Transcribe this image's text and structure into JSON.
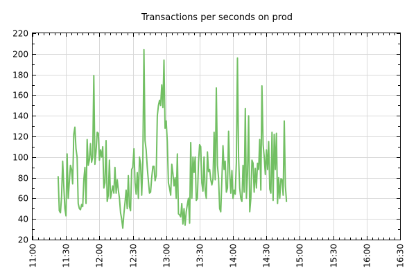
{
  "chart_data": {
    "type": "line",
    "title": "Transactions per seconds on prod",
    "xlabel": "",
    "ylabel": "",
    "xlim": [
      "11:00",
      "16:30"
    ],
    "ylim": [
      20,
      220
    ],
    "y_ticks": [
      20,
      40,
      60,
      80,
      100,
      120,
      140,
      160,
      180,
      200,
      220
    ],
    "x_ticks": [
      "11:00",
      "11:30",
      "12:00",
      "12:30",
      "13:00",
      "13:30",
      "14:00",
      "14:30",
      "15:00",
      "15:30",
      "16:00",
      "16:30"
    ],
    "x_tick_label_rotation": "vertical",
    "grid": true,
    "legend": "none",
    "series": [
      {
        "color": "#72bf63",
        "points": [
          [
            "11:23",
            81
          ],
          [
            "11:24",
            48
          ],
          [
            "11:25",
            46
          ],
          [
            "11:26",
            62
          ],
          [
            "11:27",
            96
          ],
          [
            "11:28",
            72
          ],
          [
            "11:29",
            50
          ],
          [
            "11:30",
            43
          ],
          [
            "11:31",
            103
          ],
          [
            "11:32",
            60
          ],
          [
            "11:33",
            76
          ],
          [
            "11:34",
            92
          ],
          [
            "11:35",
            88
          ],
          [
            "11:36",
            74
          ],
          [
            "11:37",
            122
          ],
          [
            "11:38",
            129
          ],
          [
            "11:39",
            108
          ],
          [
            "11:40",
            100
          ],
          [
            "11:41",
            55
          ],
          [
            "11:42",
            50
          ],
          [
            "11:43",
            49
          ],
          [
            "11:44",
            54
          ],
          [
            "11:45",
            52
          ],
          [
            "11:46",
            78
          ],
          [
            "11:47",
            90
          ],
          [
            "11:48",
            55
          ],
          [
            "11:49",
            117
          ],
          [
            "11:50",
            92
          ],
          [
            "11:51",
            97
          ],
          [
            "11:52",
            113
          ],
          [
            "11:53",
            95
          ],
          [
            "11:54",
            100
          ],
          [
            "11:55",
            179
          ],
          [
            "11:56",
            93
          ],
          [
            "11:57",
            105
          ],
          [
            "11:58",
            124
          ],
          [
            "11:59",
            123
          ],
          [
            "12:00",
            97
          ],
          [
            "12:01",
            107
          ],
          [
            "12:02",
            100
          ],
          [
            "12:03",
            110
          ],
          [
            "12:04",
            70
          ],
          [
            "12:05",
            75
          ],
          [
            "12:06",
            116
          ],
          [
            "12:07",
            57
          ],
          [
            "12:08",
            63
          ],
          [
            "12:09",
            97
          ],
          [
            "12:10",
            60
          ],
          [
            "12:11",
            66
          ],
          [
            "12:12",
            72
          ],
          [
            "12:13",
            65
          ],
          [
            "12:14",
            90
          ],
          [
            "12:15",
            65
          ],
          [
            "12:16",
            78
          ],
          [
            "12:17",
            68
          ],
          [
            "12:18",
            60
          ],
          [
            "12:19",
            46
          ],
          [
            "12:20",
            40
          ],
          [
            "12:21",
            31
          ],
          [
            "12:22",
            45
          ],
          [
            "12:23",
            56
          ],
          [
            "12:24",
            68
          ],
          [
            "12:25",
            50
          ],
          [
            "12:26",
            82
          ],
          [
            "12:27",
            52
          ],
          [
            "12:28",
            48
          ],
          [
            "12:29",
            88
          ],
          [
            "12:30",
            90
          ],
          [
            "12:31",
            108
          ],
          [
            "12:32",
            75
          ],
          [
            "12:33",
            64
          ],
          [
            "12:34",
            85
          ],
          [
            "12:35",
            60
          ],
          [
            "12:36",
            100
          ],
          [
            "12:37",
            93
          ],
          [
            "12:38",
            63
          ],
          [
            "12:39",
            95
          ],
          [
            "12:40",
            204
          ],
          [
            "12:41",
            116
          ],
          [
            "12:42",
            107
          ],
          [
            "12:43",
            90
          ],
          [
            "12:44",
            77
          ],
          [
            "12:45",
            65
          ],
          [
            "12:46",
            66
          ],
          [
            "12:47",
            80
          ],
          [
            "12:48",
            91
          ],
          [
            "12:49",
            91
          ],
          [
            "12:50",
            77
          ],
          [
            "12:51",
            82
          ],
          [
            "12:52",
            140
          ],
          [
            "12:53",
            150
          ],
          [
            "12:54",
            155
          ],
          [
            "12:55",
            150
          ],
          [
            "12:56",
            170
          ],
          [
            "12:57",
            148
          ],
          [
            "12:58",
            194
          ],
          [
            "12:59",
            128
          ],
          [
            "13:00",
            135
          ],
          [
            "13:01",
            115
          ],
          [
            "13:02",
            75
          ],
          [
            "13:03",
            70
          ],
          [
            "13:04",
            63
          ],
          [
            "13:05",
            93
          ],
          [
            "13:06",
            84
          ],
          [
            "13:07",
            72
          ],
          [
            "13:08",
            80
          ],
          [
            "13:09",
            60
          ],
          [
            "13:10",
            103
          ],
          [
            "13:11",
            45
          ],
          [
            "13:12",
            44
          ],
          [
            "13:13",
            42
          ],
          [
            "13:14",
            55
          ],
          [
            "13:15",
            35
          ],
          [
            "13:16",
            50
          ],
          [
            "13:17",
            34
          ],
          [
            "13:18",
            47
          ],
          [
            "13:19",
            54
          ],
          [
            "13:20",
            60
          ],
          [
            "13:21",
            36
          ],
          [
            "13:22",
            114
          ],
          [
            "13:23",
            60
          ],
          [
            "13:24",
            100
          ],
          [
            "13:25",
            85
          ],
          [
            "13:26",
            100
          ],
          [
            "13:27",
            58
          ],
          [
            "13:28",
            60
          ],
          [
            "13:29",
            95
          ],
          [
            "13:30",
            112
          ],
          [
            "13:31",
            110
          ],
          [
            "13:32",
            75
          ],
          [
            "13:33",
            67
          ],
          [
            "13:34",
            100
          ],
          [
            "13:35",
            68
          ],
          [
            "13:36",
            60
          ],
          [
            "13:37",
            105
          ],
          [
            "13:38",
            86
          ],
          [
            "13:39",
            88
          ],
          [
            "13:40",
            78
          ],
          [
            "13:41",
            73
          ],
          [
            "13:42",
            79
          ],
          [
            "13:43",
            124
          ],
          [
            "13:44",
            78
          ],
          [
            "13:45",
            167
          ],
          [
            "13:46",
            92
          ],
          [
            "13:47",
            80
          ],
          [
            "13:48",
            50
          ],
          [
            "13:49",
            47
          ],
          [
            "13:50",
            78
          ],
          [
            "13:51",
            111
          ],
          [
            "13:52",
            88
          ],
          [
            "13:53",
            96
          ],
          [
            "13:54",
            66
          ],
          [
            "13:55",
            70
          ],
          [
            "13:56",
            125
          ],
          [
            "13:57",
            85
          ],
          [
            "13:58",
            65
          ],
          [
            "13:59",
            87
          ],
          [
            "14:00",
            60
          ],
          [
            "14:01",
            68
          ],
          [
            "14:02",
            64
          ],
          [
            "14:03",
            95
          ],
          [
            "14:04",
            196
          ],
          [
            "14:05",
            100
          ],
          [
            "14:06",
            70
          ],
          [
            "14:07",
            60
          ],
          [
            "14:08",
            57
          ],
          [
            "14:09",
            92
          ],
          [
            "14:10",
            66
          ],
          [
            "14:11",
            147
          ],
          [
            "14:12",
            60
          ],
          [
            "14:13",
            84
          ],
          [
            "14:14",
            140
          ],
          [
            "14:15",
            47
          ],
          [
            "14:16",
            60
          ],
          [
            "14:17",
            97
          ],
          [
            "14:18",
            94
          ],
          [
            "14:19",
            66
          ],
          [
            "14:20",
            89
          ],
          [
            "14:21",
            70
          ],
          [
            "14:22",
            94
          ],
          [
            "14:23",
            88
          ],
          [
            "14:24",
            117
          ],
          [
            "14:25",
            68
          ],
          [
            "14:26",
            169
          ],
          [
            "14:27",
            112
          ],
          [
            "14:28",
            100
          ],
          [
            "14:29",
            83
          ],
          [
            "14:30",
            107
          ],
          [
            "14:31",
            88
          ],
          [
            "14:32",
            115
          ],
          [
            "14:33",
            69
          ],
          [
            "14:34",
            65
          ],
          [
            "14:35",
            124
          ],
          [
            "14:36",
            58
          ],
          [
            "14:37",
            122
          ],
          [
            "14:38",
            88
          ],
          [
            "14:39",
            123
          ],
          [
            "14:40",
            55
          ],
          [
            "14:41",
            80
          ],
          [
            "14:42",
            60
          ],
          [
            "14:43",
            79
          ],
          [
            "14:44",
            78
          ],
          [
            "14:45",
            63
          ],
          [
            "14:46",
            135
          ],
          [
            "14:47",
            72
          ],
          [
            "14:48",
            57
          ]
        ]
      }
    ]
  }
}
